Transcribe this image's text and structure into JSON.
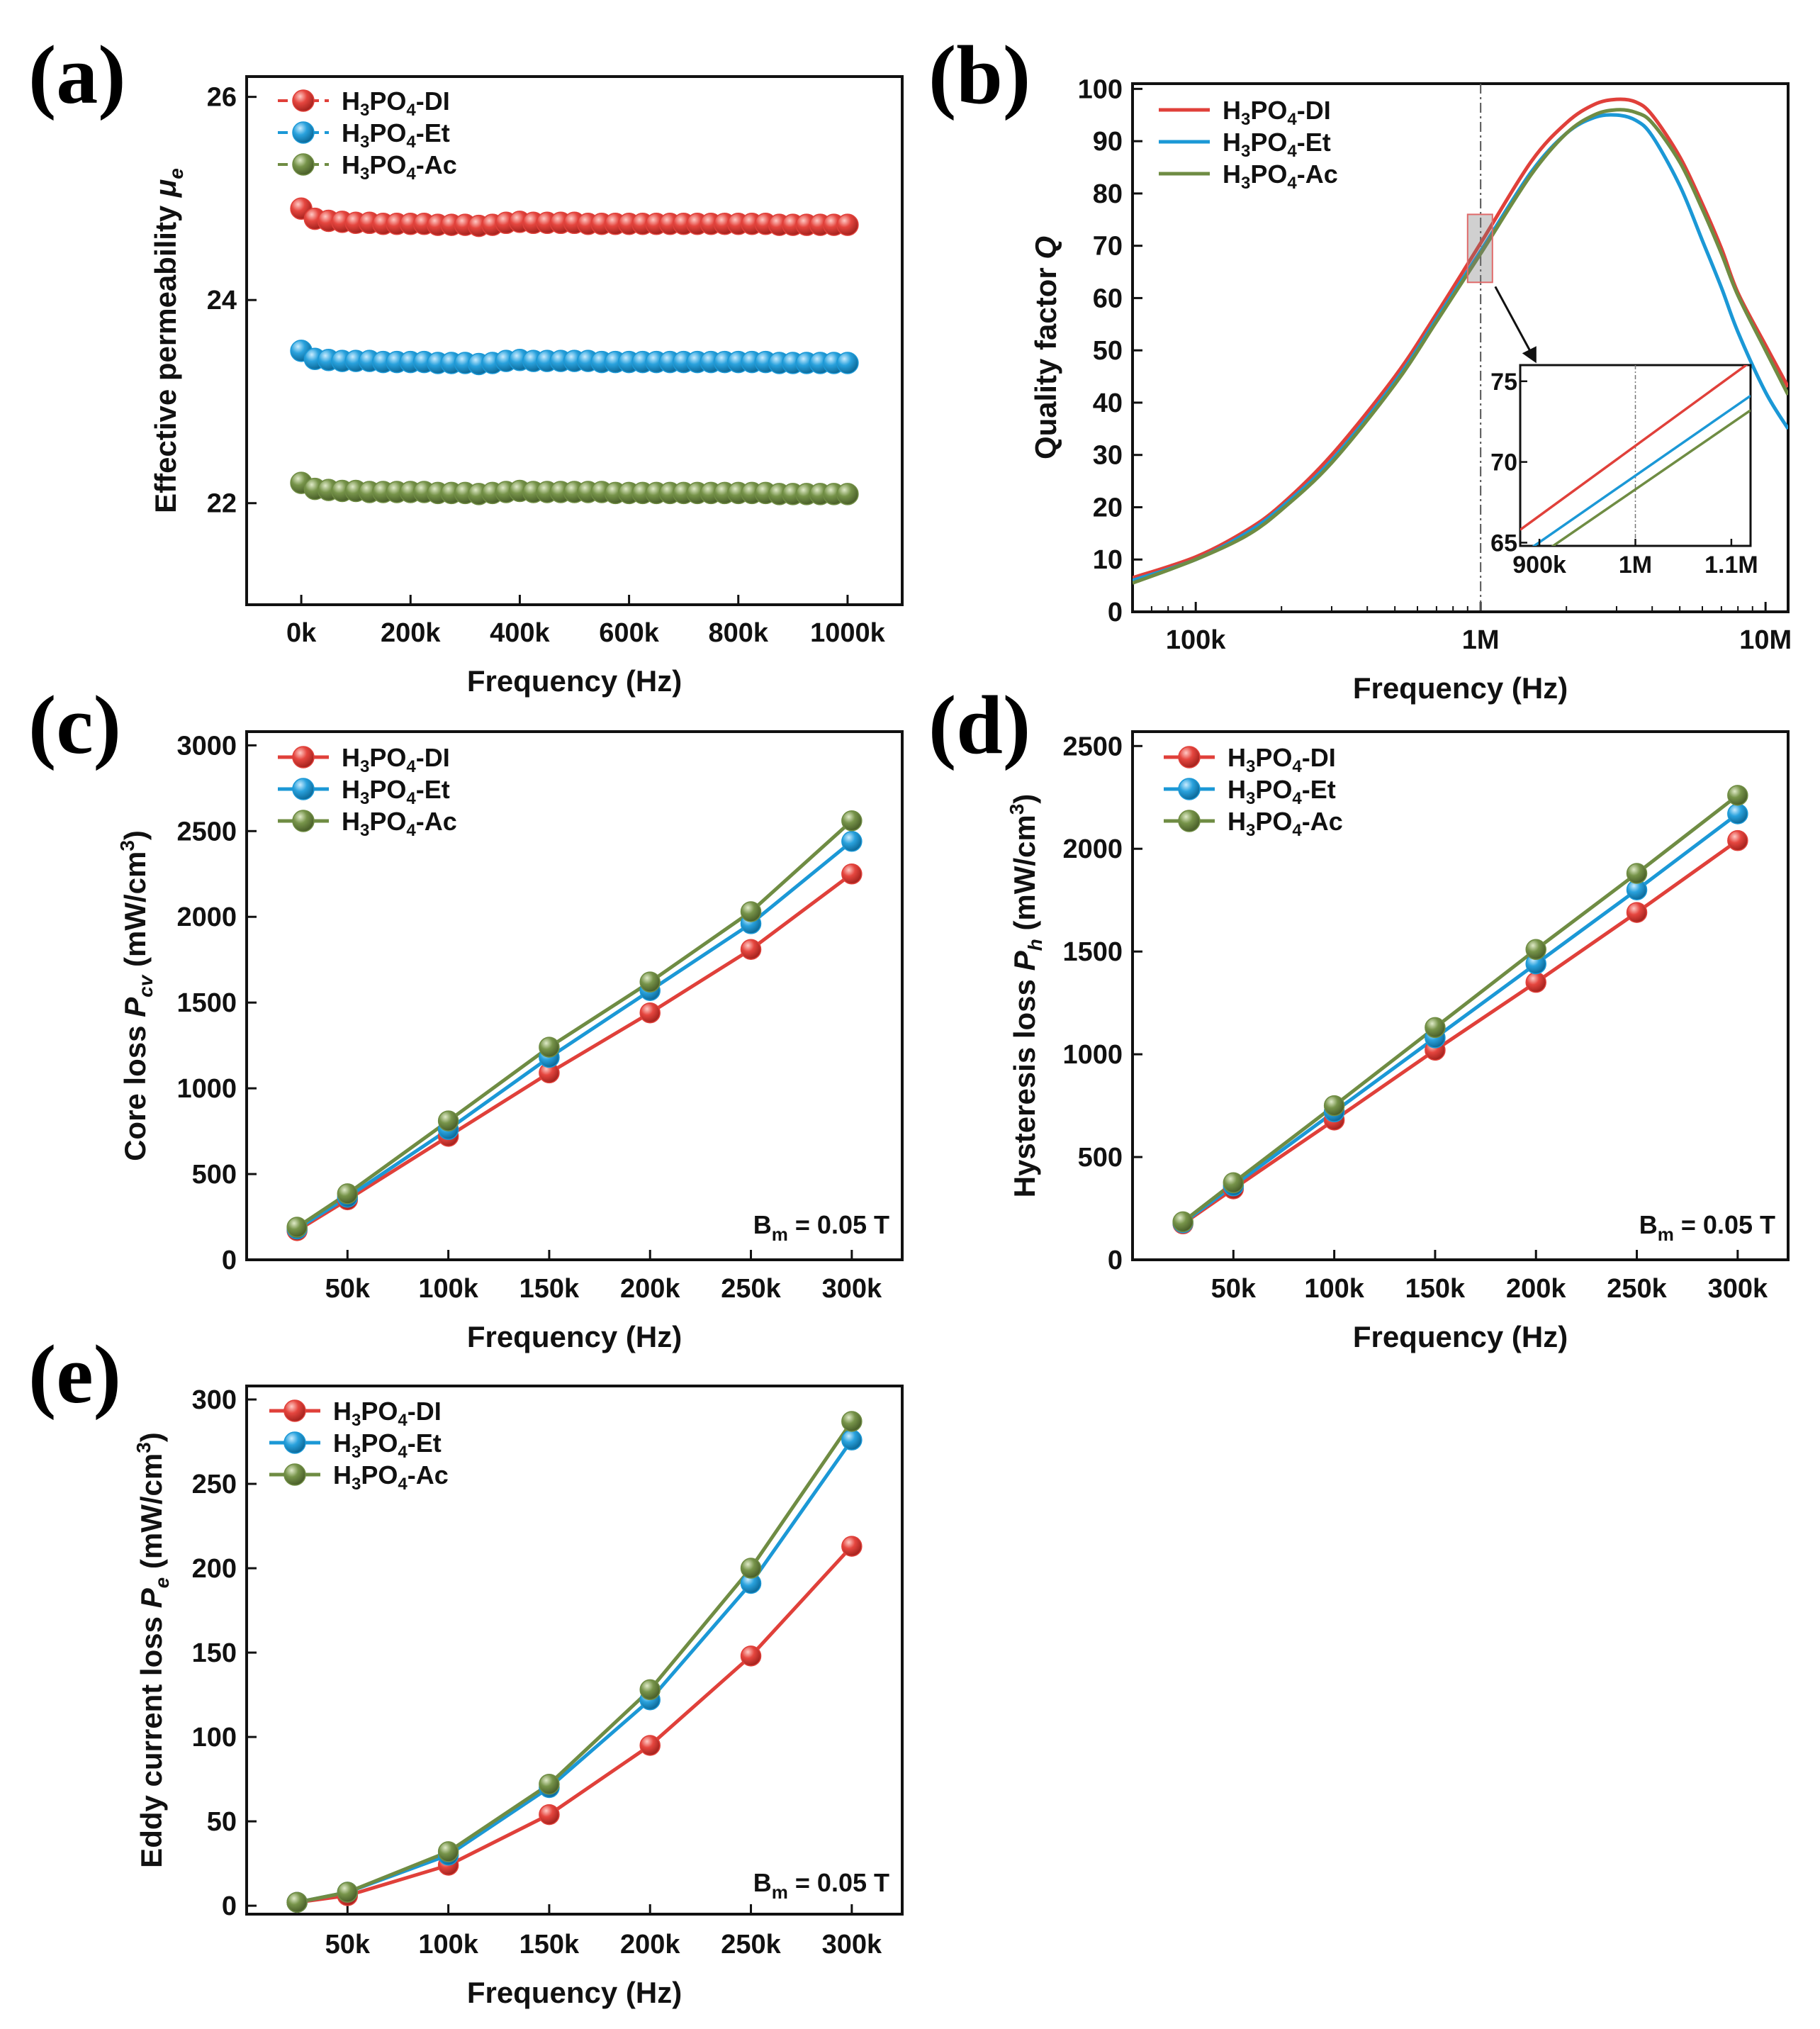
{
  "colors": {
    "DI": "#e0403a",
    "Et": "#1b98d6",
    "Ac": "#6f8c43"
  },
  "legend": {
    "DI": {
      "prefix": "H",
      "sub1": "3",
      "mid": "PO",
      "sub2": "4",
      "suffix": "-DI"
    },
    "Et": {
      "prefix": "H",
      "sub1": "3",
      "mid": "PO",
      "sub2": "4",
      "suffix": "-Et"
    },
    "Ac": {
      "prefix": "H",
      "sub1": "3",
      "mid": "PO",
      "sub2": "4",
      "suffix": "-Ac"
    }
  },
  "chart_data": [
    {
      "panel": "(a)",
      "type": "scatter",
      "xlabel": "Frequency (Hz)",
      "ylabel": {
        "main": "Effective permeability ",
        "symbol": "μ",
        "sub": "e"
      },
      "xlim": [
        -100000,
        1100000
      ],
      "ylim": [
        21,
        26.2
      ],
      "xticks": [
        0,
        200000,
        400000,
        600000,
        800000,
        1000000
      ],
      "xtick_labels": [
        "0k",
        "200k",
        "400k",
        "600k",
        "800k",
        "1000k"
      ],
      "yticks": [
        22,
        24,
        26
      ],
      "ytick_labels": [
        "22",
        "24",
        "26"
      ],
      "x": [
        0,
        25000,
        50000,
        75000,
        100000,
        125000,
        150000,
        175000,
        200000,
        225000,
        250000,
        275000,
        300000,
        325000,
        350000,
        375000,
        400000,
        425000,
        450000,
        475000,
        500000,
        525000,
        550000,
        575000,
        600000,
        625000,
        650000,
        675000,
        700000,
        725000,
        750000,
        775000,
        800000,
        825000,
        850000,
        875000,
        900000,
        925000,
        950000,
        975000,
        1000000
      ],
      "series": [
        {
          "name": "H3PO4-DI",
          "key": "DI",
          "values": [
            24.9,
            24.8,
            24.78,
            24.77,
            24.76,
            24.76,
            24.75,
            24.75,
            24.75,
            24.75,
            24.74,
            24.74,
            24.74,
            24.73,
            24.74,
            24.76,
            24.77,
            24.76,
            24.76,
            24.76,
            24.76,
            24.75,
            24.75,
            24.75,
            24.75,
            24.75,
            24.75,
            24.75,
            24.75,
            24.75,
            24.75,
            24.75,
            24.75,
            24.75,
            24.75,
            24.74,
            24.74,
            24.74,
            24.74,
            24.74,
            24.74
          ]
        },
        {
          "name": "H3PO4-Et",
          "key": "Et",
          "values": [
            23.5,
            23.42,
            23.41,
            23.4,
            23.4,
            23.4,
            23.39,
            23.39,
            23.39,
            23.39,
            23.38,
            23.38,
            23.38,
            23.37,
            23.38,
            23.4,
            23.41,
            23.4,
            23.4,
            23.4,
            23.4,
            23.4,
            23.39,
            23.39,
            23.39,
            23.39,
            23.39,
            23.39,
            23.39,
            23.39,
            23.39,
            23.39,
            23.39,
            23.39,
            23.39,
            23.38,
            23.38,
            23.38,
            23.38,
            23.38,
            23.38
          ]
        },
        {
          "name": "H3PO4-Ac",
          "key": "Ac",
          "values": [
            22.2,
            22.14,
            22.13,
            22.12,
            22.12,
            22.11,
            22.11,
            22.11,
            22.11,
            22.11,
            22.1,
            22.1,
            22.1,
            22.09,
            22.1,
            22.11,
            22.12,
            22.11,
            22.11,
            22.11,
            22.11,
            22.11,
            22.11,
            22.1,
            22.1,
            22.1,
            22.1,
            22.1,
            22.1,
            22.1,
            22.1,
            22.1,
            22.1,
            22.1,
            22.1,
            22.09,
            22.09,
            22.09,
            22.09,
            22.09,
            22.09
          ]
        }
      ]
    },
    {
      "panel": "(b)",
      "type": "line",
      "xscale": "log",
      "xlabel": "Frequency (Hz)",
      "ylabel": {
        "main": "Quality factor ",
        "symbol": "Q"
      },
      "xlim": [
        60000,
        12000000
      ],
      "ylim": [
        0,
        101
      ],
      "xticks": [
        100000,
        1000000,
        10000000
      ],
      "xtick_labels": [
        "100k",
        "1M",
        "10M"
      ],
      "yticks": [
        0,
        10,
        20,
        30,
        40,
        50,
        60,
        70,
        80,
        90,
        100
      ],
      "ytick_labels": [
        "0",
        "10",
        "20",
        "30",
        "40",
        "50",
        "60",
        "70",
        "80",
        "90",
        "100"
      ],
      "ref_line_x": 1000000,
      "zoom_box": {
        "x": [
          900000,
          1100000
        ],
        "y": [
          63,
          76
        ]
      },
      "x": [
        60000,
        100000,
        150000,
        200000,
        300000,
        500000,
        700000,
        1000000,
        1500000,
        2000000,
        2500000,
        3000000,
        3500000,
        4000000,
        5000000,
        6000000,
        7000000,
        8000000,
        10000000,
        12000000
      ],
      "series": [
        {
          "name": "H3PO4-DI",
          "key": "DI",
          "values": [
            6.5,
            10.5,
            15.5,
            20.5,
            30,
            45,
            57,
            70.5,
            86,
            93.5,
            97,
            98,
            97.5,
            95,
            87,
            78,
            69.5,
            61,
            51,
            43
          ]
        },
        {
          "name": "H3PO4-Et",
          "key": "Et",
          "values": [
            6,
            10,
            15,
            20,
            29,
            44,
            56,
            69,
            84,
            91.5,
            94.5,
            95,
            94,
            91,
            81.5,
            71,
            62,
            53.5,
            42,
            35
          ]
        },
        {
          "name": "H3PO4-Ac",
          "key": "Ac",
          "values": [
            5.5,
            10,
            14.5,
            19.5,
            28.5,
            43.5,
            55.5,
            68.5,
            83.5,
            91.5,
            95,
            96,
            95.5,
            93.5,
            86,
            77,
            68.5,
            60.5,
            50,
            41.5
          ]
        }
      ],
      "inset": {
        "xlim": [
          880000,
          1120000
        ],
        "ylim": [
          64.8,
          76
        ],
        "xticks": [
          900000,
          1000000,
          1100000
        ],
        "xtick_labels": [
          "900k",
          "1M",
          "1.1M"
        ],
        "yticks": [
          65,
          70,
          75
        ],
        "ytick_labels": [
          "65",
          "70",
          "75"
        ],
        "ref_line_x": 1000000,
        "lines": [
          {
            "key": "DI",
            "x": [
              880000,
              1120000
            ],
            "y": [
              65.8,
              76.2
            ]
          },
          {
            "key": "Et",
            "x": [
              880000,
              1120000
            ],
            "y": [
              64.2,
              74.1
            ]
          },
          {
            "key": "Ac",
            "x": [
              880000,
              1120000
            ],
            "y": [
              63.4,
              73.2
            ]
          }
        ]
      }
    },
    {
      "panel": "(c)",
      "type": "line",
      "xlabel": "Frequency (Hz)",
      "ylabel": {
        "main": "Core loss ",
        "symbol": "P",
        "sub": "cv",
        "unit": " (mW/cm",
        "sup": "3",
        "close": ")"
      },
      "xlim": [
        0,
        325000
      ],
      "ylim": [
        0,
        3080
      ],
      "xticks": [
        50000,
        100000,
        150000,
        200000,
        250000,
        300000
      ],
      "xtick_labels": [
        "50k",
        "100k",
        "150k",
        "200k",
        "250k",
        "300k"
      ],
      "yticks": [
        0,
        500,
        1000,
        1500,
        2000,
        2500,
        3000
      ],
      "ytick_labels": [
        "0",
        "500",
        "1000",
        "1500",
        "2000",
        "2500",
        "3000"
      ],
      "annotation": {
        "main": "B",
        "sub": "m",
        "rest": " = 0.05 T"
      },
      "x": [
        25000,
        50000,
        100000,
        150000,
        200000,
        250000,
        300000
      ],
      "series": [
        {
          "name": "H3PO4-DI",
          "key": "DI",
          "values": [
            170,
            350,
            720,
            1090,
            1440,
            1810,
            2250
          ]
        },
        {
          "name": "H3PO4-Et",
          "key": "Et",
          "values": [
            180,
            365,
            760,
            1180,
            1570,
            1960,
            2440
          ]
        },
        {
          "name": "H3PO4-Ac",
          "key": "Ac",
          "values": [
            190,
            385,
            810,
            1240,
            1620,
            2030,
            2560
          ]
        }
      ]
    },
    {
      "panel": "(d)",
      "type": "line",
      "xlabel": "Frequency (Hz)",
      "ylabel": {
        "main": "Hysteresis loss ",
        "symbol": "P",
        "sub": "h",
        "unit": " (mW/cm",
        "sup": "3",
        "close": ")"
      },
      "xlim": [
        0,
        325000
      ],
      "ylim": [
        0,
        2570
      ],
      "xticks": [
        50000,
        100000,
        150000,
        200000,
        250000,
        300000
      ],
      "xtick_labels": [
        "50k",
        "100k",
        "150k",
        "200k",
        "250k",
        "300k"
      ],
      "yticks": [
        0,
        500,
        1000,
        1500,
        2000,
        2500
      ],
      "ytick_labels": [
        "0",
        "500",
        "1000",
        "1500",
        "2000",
        "2500"
      ],
      "annotation": {
        "main": "B",
        "sub": "m",
        "rest": " = 0.05 T"
      },
      "x": [
        25000,
        50000,
        100000,
        150000,
        200000,
        250000,
        300000
      ],
      "series": [
        {
          "name": "H3PO4-DI",
          "key": "DI",
          "values": [
            175,
            345,
            680,
            1020,
            1350,
            1690,
            2040
          ]
        },
        {
          "name": "H3PO4-Et",
          "key": "Et",
          "values": [
            180,
            360,
            720,
            1080,
            1440,
            1800,
            2170
          ]
        },
        {
          "name": "H3PO4-Ac",
          "key": "Ac",
          "values": [
            185,
            375,
            750,
            1130,
            1510,
            1880,
            2260
          ]
        }
      ]
    },
    {
      "panel": "(e)",
      "type": "line",
      "xlabel": "Frequency (Hz)",
      "ylabel": {
        "main": "Eddy current loss ",
        "symbol": "P",
        "sub": "e",
        "unit": " (mW/cm",
        "sup": "3",
        "close": ")"
      },
      "xlim": [
        0,
        325000
      ],
      "ylim": [
        -5,
        308
      ],
      "xticks": [
        50000,
        100000,
        150000,
        200000,
        250000,
        300000
      ],
      "xtick_labels": [
        "50k",
        "100k",
        "150k",
        "200k",
        "250k",
        "300k"
      ],
      "yticks": [
        0,
        50,
        100,
        150,
        200,
        250,
        300
      ],
      "ytick_labels": [
        "0",
        "50",
        "100",
        "150",
        "200",
        "250",
        "300"
      ],
      "annotation": {
        "main": "B",
        "sub": "m",
        "rest": " = 0.05 T"
      },
      "x": [
        25000,
        50000,
        100000,
        150000,
        200000,
        250000,
        300000
      ],
      "series": [
        {
          "name": "H3PO4-DI",
          "key": "DI",
          "values": [
            2,
            6,
            24,
            54,
            95,
            148,
            213
          ]
        },
        {
          "name": "H3PO4-Et",
          "key": "Et",
          "values": [
            2,
            8,
            30,
            70,
            122,
            191,
            276
          ]
        },
        {
          "name": "H3PO4-Ac",
          "key": "Ac",
          "values": [
            2,
            8,
            32,
            72,
            128,
            200,
            287
          ]
        }
      ]
    }
  ]
}
